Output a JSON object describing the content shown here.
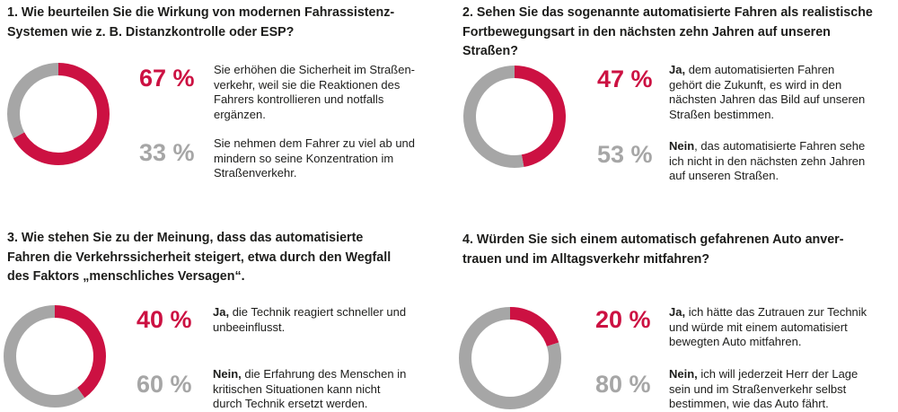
{
  "chart_data": [
    {
      "type": "pie",
      "donut": true,
      "title": [
        "1. Wie beurteilen Sie die Wirkung von modernen Fahrassistenz-",
        "Systemen wie z. B. Distanzkontrolle oder ESP?"
      ],
      "colors": [
        "#cc1142",
        "#a6a6a6"
      ],
      "slices": [
        {
          "value": 67,
          "value_label": "67 %",
          "lead": "",
          "text": [
            "Sie erhöhen die Sicherheit im Straßen-",
            "verkehr, weil sie die Reaktionen des",
            "Fahrers kontrollieren und notfalls",
            "ergänzen."
          ]
        },
        {
          "value": 33,
          "value_label": "33 %",
          "lead": "",
          "text": [
            "Sie nehmen dem Fahrer zu viel ab und",
            "mindern so seine Konzentration im",
            "Straßenverkehr."
          ]
        }
      ]
    },
    {
      "type": "pie",
      "donut": true,
      "title": [
        "2. Sehen Sie das sogenannte automatisierte Fahren als realistische",
        "Fortbewegungsart in den nächsten zehn Jahren auf unseren",
        "Straßen?"
      ],
      "colors": [
        "#cc1142",
        "#a6a6a6"
      ],
      "slices": [
        {
          "value": 47,
          "value_label": "47 %",
          "lead": "Ja,",
          "text": [
            " dem automatisierten Fahren",
            "gehört die Zukunft, es wird in den",
            "nächsten Jahren das Bild auf unseren",
            "Straßen bestimmen."
          ]
        },
        {
          "value": 53,
          "value_label": "53 %",
          "lead": "Nein",
          "text": [
            ", das automatisierte Fahren sehe",
            "ich nicht in den nächsten zehn Jahren",
            "auf unseren Straßen."
          ]
        }
      ]
    },
    {
      "type": "pie",
      "donut": true,
      "title": [
        "3. Wie stehen Sie zu der Meinung, dass das automatisierte",
        "Fahren die Verkehrssicherheit steigert, etwa durch den Wegfall",
        "des Faktors „menschliches Versagen“."
      ],
      "colors": [
        "#cc1142",
        "#a6a6a6"
      ],
      "slices": [
        {
          "value": 40,
          "value_label": "40 %",
          "lead": "Ja,",
          "text": [
            " die Technik reagiert schneller und",
            "unbeeinflusst."
          ]
        },
        {
          "value": 60,
          "value_label": "60 %",
          "lead": "Nein,",
          "text": [
            " die Erfahrung des Menschen in",
            "kritischen Situationen kann nicht",
            "durch Technik ersetzt werden."
          ]
        }
      ]
    },
    {
      "type": "pie",
      "donut": true,
      "title": [
        "4. Würden Sie sich einem automatisch gefahrenen Auto anver-",
        "trauen und im Alltagsverkehr mitfahren?"
      ],
      "colors": [
        "#cc1142",
        "#a6a6a6"
      ],
      "slices": [
        {
          "value": 20,
          "value_label": "20 %",
          "lead": "Ja,",
          "text": [
            " ich hätte das Zutrauen zur Technik",
            "und würde mit einem automatisiert",
            "bewegten Auto mitfahren."
          ]
        },
        {
          "value": 80,
          "value_label": "80 %",
          "lead": "Nein,",
          "text": [
            " ich will jederzeit Herr der Lage",
            "sein und im Straßenverkehr selbst",
            "bestimmen, wie das Auto fährt."
          ]
        }
      ]
    }
  ]
}
